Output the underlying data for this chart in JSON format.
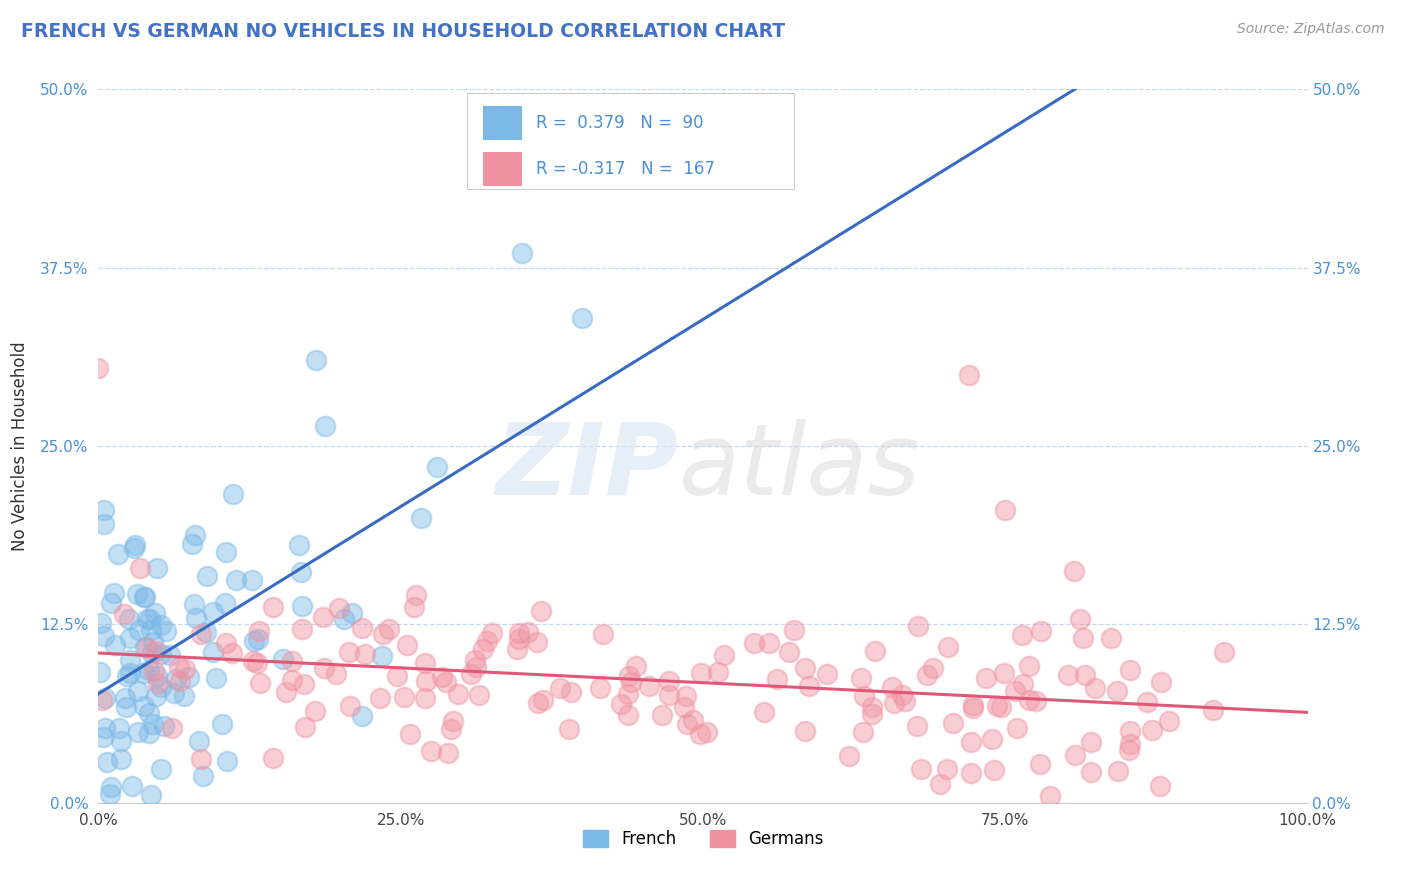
{
  "title": "FRENCH VS GERMAN NO VEHICLES IN HOUSEHOLD CORRELATION CHART",
  "source_text": "Source: ZipAtlas.com",
  "ylabel": "No Vehicles in Household",
  "x_min": 0.0,
  "x_max": 1.0,
  "y_min": 0.0,
  "y_max": 0.5,
  "x_ticks": [
    0.0,
    0.25,
    0.5,
    0.75,
    1.0
  ],
  "x_tick_labels": [
    "0.0%",
    "25.0%",
    "50.0%",
    "75.0%",
    "100.0%"
  ],
  "y_ticks": [
    0.0,
    0.125,
    0.25,
    0.375,
    0.5
  ],
  "y_tick_labels": [
    "0.0%",
    "12.5%",
    "25.0%",
    "37.5%",
    "50.0%"
  ],
  "french_color": "#7ab8e8",
  "german_color": "#f093a0",
  "french_line_color": "#3a6bc4",
  "german_line_color": "#e05878",
  "french_R": 0.379,
  "french_N": 90,
  "german_R": -0.317,
  "german_N": 167,
  "legend_R_color": "#4a90d9",
  "background_color": "#ffffff",
  "grid_color": "#c8d8e8",
  "title_color": "#4472c4",
  "marker_size": 200,
  "marker_alpha": 0.45,
  "marker_lw": 1.5
}
